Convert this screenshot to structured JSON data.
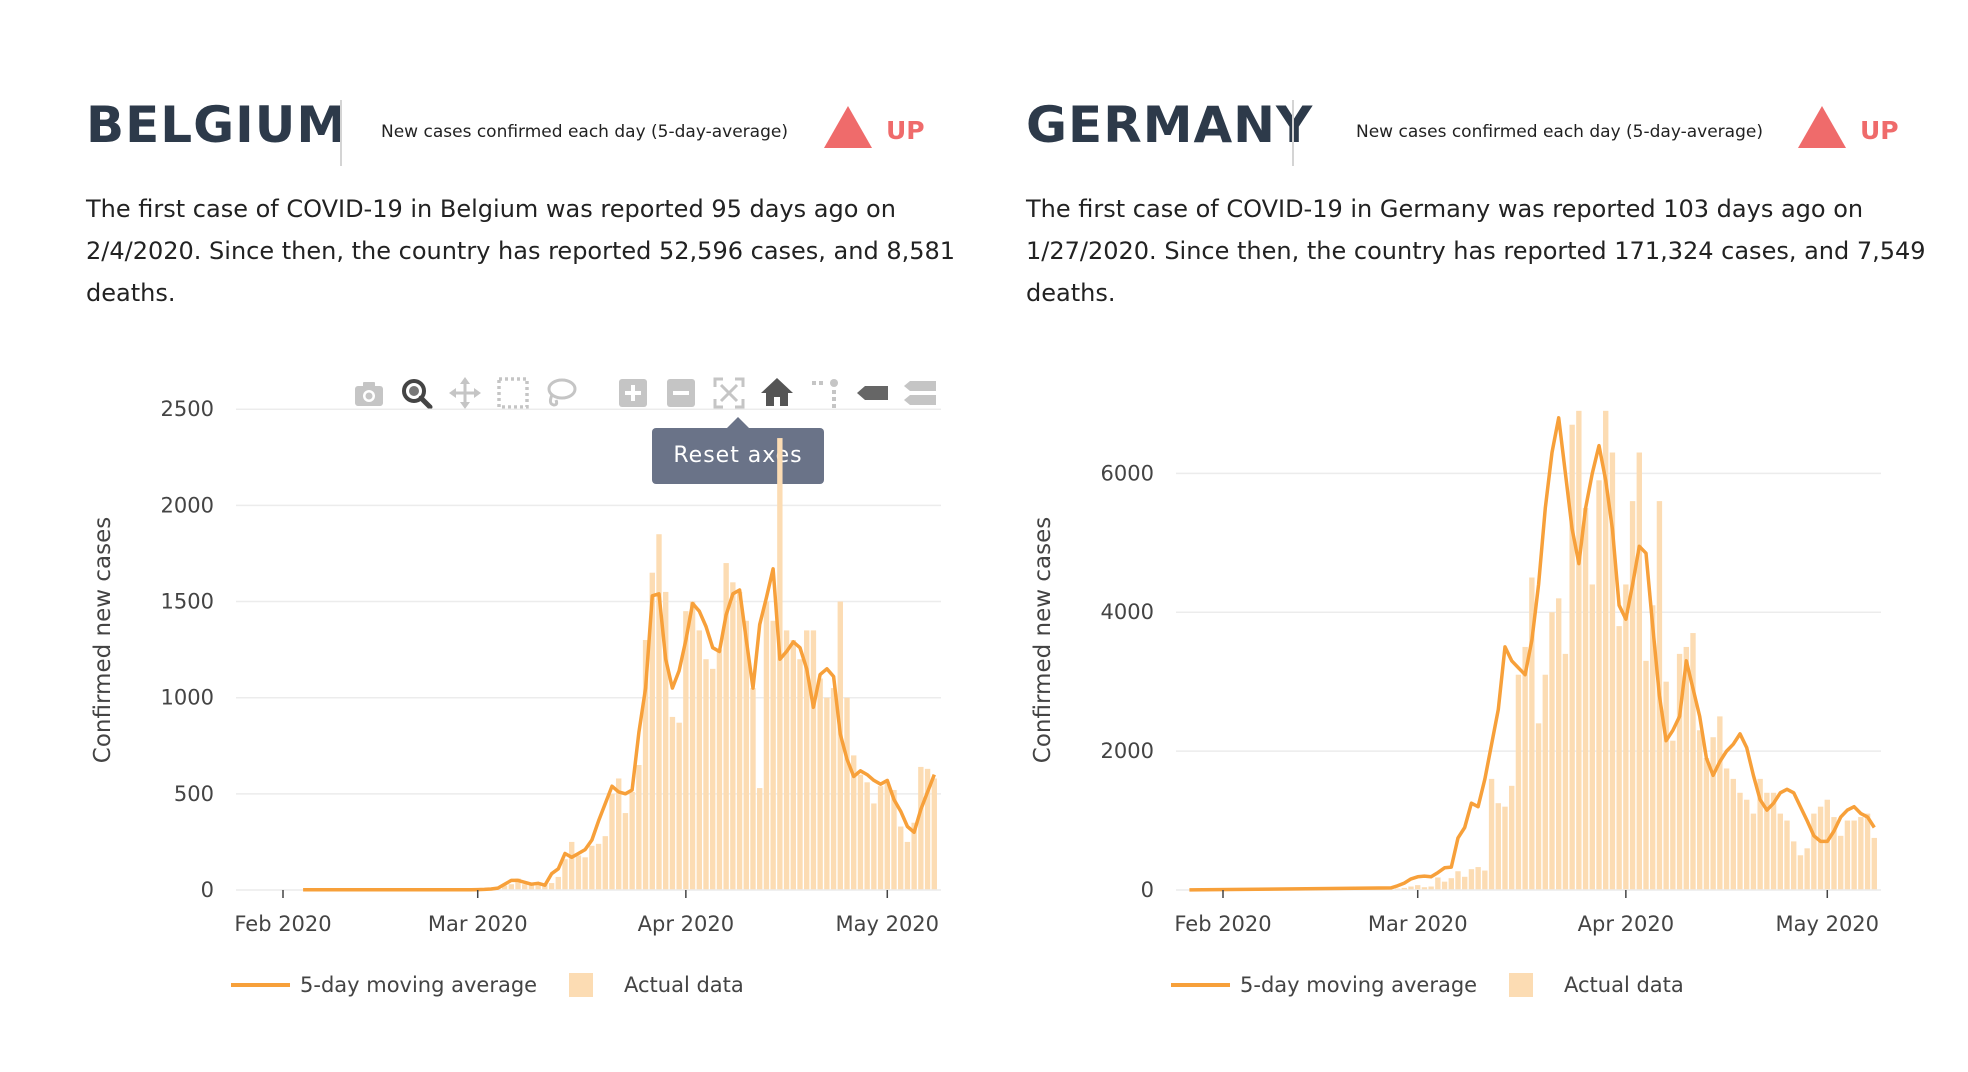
{
  "colors": {
    "avg_line": "#f7a03a",
    "bars": "#fcdcb3",
    "trend_up": "#ef6b6b",
    "heading": "#2d3a4a"
  },
  "panels": [
    {
      "country": "BELGIUM",
      "subtitle": "New cases confirmed each day (5-day-average)",
      "trend": {
        "icon": "triangle-up-icon",
        "label": "UP"
      },
      "description": "The first case of COVID-19 in Belgium was reported 95 days ago on 2/4/2020. Since then, the country has reported 52,596 cases, and 8,581 deaths.",
      "modebar": {
        "buttons": [
          "camera-icon",
          "zoom-icon",
          "pan-icon",
          "box-select-icon",
          "lasso-icon",
          "zoom-in-icon",
          "zoom-out-icon",
          "autoscale-icon",
          "reset-axes-icon",
          "spike-lines-icon",
          "hover-closest-icon",
          "hover-compare-icon"
        ],
        "tooltip": "Reset axes"
      },
      "chart_data": {
        "type": "bar",
        "ylabel": "Confirmed new cases",
        "ylim": [
          0,
          2600
        ],
        "yticks": [
          0,
          500,
          1000,
          1500,
          2000,
          2500
        ],
        "xticks": [
          "Feb 2020",
          "Mar 2020",
          "Apr 2020",
          "May 2020"
        ],
        "xtick_dates": [
          "2020-02-01",
          "2020-03-01",
          "2020-04-01",
          "2020-05-01"
        ],
        "xrange": [
          "2020-01-25",
          "2020-05-09"
        ],
        "legend": [
          "5-day moving average",
          "Actual data"
        ],
        "x": [
          "2020-02-04",
          "2020-02-29",
          "2020-03-01",
          "2020-03-02",
          "2020-03-03",
          "2020-03-04",
          "2020-03-05",
          "2020-03-06",
          "2020-03-07",
          "2020-03-08",
          "2020-03-09",
          "2020-03-10",
          "2020-03-11",
          "2020-03-12",
          "2020-03-13",
          "2020-03-14",
          "2020-03-15",
          "2020-03-16",
          "2020-03-17",
          "2020-03-18",
          "2020-03-19",
          "2020-03-20",
          "2020-03-21",
          "2020-03-22",
          "2020-03-23",
          "2020-03-24",
          "2020-03-25",
          "2020-03-26",
          "2020-03-27",
          "2020-03-28",
          "2020-03-29",
          "2020-03-30",
          "2020-03-31",
          "2020-04-01",
          "2020-04-02",
          "2020-04-03",
          "2020-04-04",
          "2020-04-05",
          "2020-04-06",
          "2020-04-07",
          "2020-04-08",
          "2020-04-09",
          "2020-04-10",
          "2020-04-11",
          "2020-04-12",
          "2020-04-13",
          "2020-04-14",
          "2020-04-15",
          "2020-04-16",
          "2020-04-17",
          "2020-04-18",
          "2020-04-19",
          "2020-04-20",
          "2020-04-21",
          "2020-04-22",
          "2020-04-23",
          "2020-04-24",
          "2020-04-25",
          "2020-04-26",
          "2020-04-27",
          "2020-04-28",
          "2020-04-29",
          "2020-04-30",
          "2020-05-01",
          "2020-05-02",
          "2020-05-03",
          "2020-05-04",
          "2020-05-05",
          "2020-05-06",
          "2020-05-07",
          "2020-05-08"
        ],
        "series": [
          {
            "name": "Actual data",
            "type": "bar",
            "values": [
              1,
              0,
              2,
              6,
              5,
              9,
              23,
              30,
              60,
              30,
              30,
              34,
              28,
              36,
              68,
              160,
              250,
              180,
              170,
              230,
              240,
              280,
              500,
              580,
              400,
              510,
              650,
              1300,
              1650,
              1850,
              1550,
              900,
              870,
              1450,
              1500,
              1350,
              1200,
              1150,
              1250,
              1700,
              1600,
              1550,
              1400,
              1050,
              530,
              1500,
              1400,
              2350,
              1350,
              1300,
              1200,
              1350,
              1350,
              1100,
              1000,
              1050,
              1500,
              1000,
              700,
              600,
              560,
              450,
              540,
              560,
              520,
              330,
              250,
              350,
              640,
              630,
              580
            ]
          },
          {
            "name": "5-day moving average",
            "type": "line",
            "values": [
              1,
              1,
              2,
              3,
              5,
              10,
              30,
              50,
              50,
              40,
              30,
              35,
              25,
              85,
              110,
              190,
              170,
              190,
              210,
              260,
              360,
              450,
              540,
              510,
              500,
              520,
              820,
              1050,
              1530,
              1540,
              1200,
              1050,
              1140,
              1300,
              1490,
              1450,
              1370,
              1260,
              1240,
              1430,
              1540,
              1560,
              1300,
              1050,
              1380,
              1520,
              1670,
              1200,
              1240,
              1290,
              1260,
              1150,
              950,
              1120,
              1150,
              1110,
              810,
              680,
              590,
              620,
              600,
              570,
              550,
              570,
              470,
              410,
              330,
              300,
              420,
              510,
              600
            ]
          }
        ]
      }
    },
    {
      "country": "GERMANY",
      "subtitle": "New cases confirmed each day (5-day-average)",
      "trend": {
        "icon": "triangle-up-icon",
        "label": "UP"
      },
      "description": "The first case of COVID-19 in Germany was reported 103 days ago on 1/27/2020. Since then, the country has reported 171,324 cases, and 7,549 deaths.",
      "chart_data": {
        "type": "bar",
        "ylabel": "Confirmed new cases",
        "ylim": [
          0,
          7200
        ],
        "yticks": [
          0,
          2000,
          4000,
          6000
        ],
        "xticks": [
          "Feb 2020",
          "Mar 2020",
          "Apr 2020",
          "May 2020"
        ],
        "xtick_dates": [
          "2020-02-01",
          "2020-03-01",
          "2020-04-01",
          "2020-05-01"
        ],
        "xrange": [
          "2020-01-25",
          "2020-05-09"
        ],
        "legend": [
          "5-day moving average",
          "Actual data"
        ],
        "x": [
          "2020-01-27",
          "2020-02-26",
          "2020-02-27",
          "2020-02-28",
          "2020-02-29",
          "2020-03-01",
          "2020-03-02",
          "2020-03-03",
          "2020-03-04",
          "2020-03-05",
          "2020-03-06",
          "2020-03-07",
          "2020-03-08",
          "2020-03-09",
          "2020-03-10",
          "2020-03-11",
          "2020-03-12",
          "2020-03-13",
          "2020-03-14",
          "2020-03-15",
          "2020-03-16",
          "2020-03-17",
          "2020-03-18",
          "2020-03-19",
          "2020-03-20",
          "2020-03-21",
          "2020-03-22",
          "2020-03-23",
          "2020-03-24",
          "2020-03-25",
          "2020-03-26",
          "2020-03-27",
          "2020-03-28",
          "2020-03-29",
          "2020-03-30",
          "2020-03-31",
          "2020-04-01",
          "2020-04-02",
          "2020-04-03",
          "2020-04-04",
          "2020-04-05",
          "2020-04-06",
          "2020-04-07",
          "2020-04-08",
          "2020-04-09",
          "2020-04-10",
          "2020-04-11",
          "2020-04-12",
          "2020-04-13",
          "2020-04-14",
          "2020-04-15",
          "2020-04-16",
          "2020-04-17",
          "2020-04-18",
          "2020-04-19",
          "2020-04-20",
          "2020-04-21",
          "2020-04-22",
          "2020-04-23",
          "2020-04-24",
          "2020-04-25",
          "2020-04-26",
          "2020-04-27",
          "2020-04-28",
          "2020-04-29",
          "2020-04-30",
          "2020-05-01",
          "2020-05-02",
          "2020-05-03",
          "2020-05-04",
          "2020-05-05",
          "2020-05-06",
          "2020-05-07",
          "2020-05-08"
        ],
        "series": [
          {
            "name": "Actual data",
            "type": "bar",
            "values": [
              1,
              0,
              20,
              30,
              50,
              70,
              40,
              50,
              180,
              120,
              170,
              270,
              190,
              300,
              330,
              280,
              1600,
              1250,
              1200,
              1500,
              3100,
              3500,
              4500,
              2400,
              3100,
              4000,
              4200,
              3400,
              6700,
              6900,
              5500,
              4400,
              5900,
              6900,
              6300,
              3800,
              4400,
              5600,
              6300,
              3300,
              4100,
              5600,
              3000,
              2150,
              3400,
              3500,
              3700,
              2300,
              1900,
              2200,
              2500,
              1750,
              1600,
              1400,
              1300,
              1100,
              1600,
              1400,
              1400,
              1100,
              1000,
              700,
              500,
              600,
              1100,
              1200,
              1300,
              1050,
              780,
              1000,
              1000,
              1050,
              1100,
              750
            ]
          },
          {
            "name": "5-day moving average",
            "type": "line",
            "values": [
              1,
              30,
              60,
              100,
              160,
              190,
              200,
              190,
              250,
              320,
              330,
              750,
              900,
              1250,
              1200,
              1600,
              2100,
              2600,
              3500,
              3300,
              3200,
              3100,
              3600,
              4400,
              5500,
              6300,
              6800,
              6000,
              5200,
              4700,
              5500,
              6000,
              6400,
              5900,
              5200,
              4100,
              3900,
              4400,
              4950,
              4850,
              3800,
              2800,
              2150,
              2300,
              2500,
              3300,
              2900,
              2500,
              1900,
              1650,
              1850,
              2000,
              2100,
              2250,
              2050,
              1650,
              1300,
              1150,
              1250,
              1400,
              1450,
              1400,
              1200,
              1000,
              780,
              700,
              700,
              850,
              1050,
              1150,
              1200,
              1100,
              1050,
              900
            ]
          }
        ]
      }
    }
  ]
}
